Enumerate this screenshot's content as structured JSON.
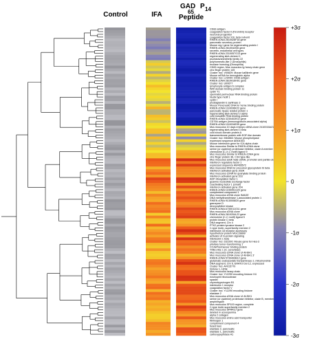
{
  "chart_data": {
    "type": "heatmap",
    "columns": [
      "Control",
      "IFA",
      "GAD 65 P14 Peptide"
    ],
    "column_labels": {
      "control": "Control",
      "ifa": "IFA",
      "gad_main": "GAD",
      "gad_sub": "65",
      "p14_main": "P",
      "p14_sub": "14",
      "peptide": "Peptide"
    },
    "colorbar": {
      "ticks": [
        "+3σ",
        "+2σ",
        "+1σ",
        "0",
        "-1σ",
        "-2σ",
        "-3σ"
      ],
      "values": [
        3,
        2,
        1,
        0,
        -1,
        -2,
        -3
      ],
      "colors_high_to_low": [
        "#c81a10",
        "#f0601c",
        "#f6a028",
        "#f3e32c",
        "#8a87b4",
        "#2b36cc",
        "#0b1aa2"
      ]
    },
    "rows": [
      "CD83 antigen",
      "coagulation factor II (thrombin) receptor",
      "neuronal progenitor",
      "coagulation factor XIII, beta subunit",
      "RIKEN cDNA 2610528F18 gene",
      "pancreatic secretory protein",
      "Mouse reg I gene for regenerating protein I",
      "RIKEN cDNA 2610042I06 gene",
      "secretin, endothelial cell types",
      "RIKEN cDNA 2310057G13 gene",
      "regenerating islet-derived 1",
      "psoriasis/anesthetic family 22",
      "polyhomeotic-like 2 (Drosophila)",
      "enolase homolog (Drosophila)",
      "CD83 region, Mus musculus Ig heavy chain gene",
      "zinc finger protein 145",
      "Cluster Incl. V00829: Mouse kallikrein gene",
      "Mouse mRNA for hemoglobin alpha",
      "Cluster Incl. L29454: CD36 antigen",
      "RIKEN cDNA 2810016H01 gene",
      "Cluster Incl. U00677",
      "lymphocyte antigen 6 complex",
      "WW domain binding protein 11",
      "cyclin T1",
      "spermatid perinuclear RNA binding protein",
      "Nudix type motif 1",
      "cyclin I",
      "prostaglandin E synthase 3",
      "Mouse Pancreatic DNA for heme binding protein",
      "RIKEN cDNA 1110006K22 gene",
      "pancreatic lipase related protein 1",
      "regenerating islet-derived 3 alpha",
      "cold inducible RNA binding protein",
      "RIKEN cDNA 3230402E02 gene",
      "CD79A antigen (immunoglobulin-associated alpha)",
      "RIKEN cDNA 1110004E09 gene",
      "Mus musculus 10 days embryo cDNA clone 2410015A21",
      "regenerating islet-derived 3 beta",
      "cold shock domain protein A",
      "transmembrane protein with EGF-like domain",
      "Cluster Incl. M63863: Mouse phospholipase",
      "expressed sequence AI504353",
      "Mouse interleukin gene for ICA alpha chain",
      "Mus musculus Similar to RIKEN cDNA clone",
      "serine (or cysteine) proteinase inhibitor, clade A member 3N",
      "chemokine (C-X-C motif) ligand 9",
      "Mus musculus Similar to RIKEN cDNA gene",
      "zinc finger protein 36, C3H type-like",
      "Mus musculus adult male cDNA, promoter and partial cds",
      "interferon regulatory factor 1",
      "expressed sequence AW465572",
      "Mus musculus DNA for precursor glycoprotein Ib beta",
      "interferon activated gene 202A",
      "Mus musculus cDNA for guanylate binding protein",
      "interferon activated gene 203",
      "ADP-ribosylation factor 1",
      "guanine nucleotide exchange factor",
      "coactivating factor 1 (small)",
      "interferon activated gene 204",
      "RIKEN cDNA 1100001G20 gene",
      "complement component 1",
      "Mus musculus cDNA clone IMAGE",
      "DNA methyltransferase 1-associated protein 1",
      "RIKEN cDNA 9130008I20 gene",
      "granzyme D",
      "deoxycytidine kinase",
      "RIKEN cDNA A730011O11 gene",
      "Mus musculus cDNA clone",
      "RIKEN cDNA 2610204L22 gene",
      "chemokine (C-C motif) ligand 5",
      "protein kinase C beta",
      "DNA segment, Chr 4",
      "PTK2 protein tyrosine kinase 2",
      "C-type lectin, superfamily member 2",
      "interleukin 18 receptor accessory",
      "hypothetical protein MGC28899",
      "activator of G-protein signaling",
      "interleukin 1 beta",
      "Cluster Incl. D32200: Mouse gene for Hes-3",
      "pituitary tumor-transforming 1",
      "CCAAT/enhancer binding protein",
      "YME1-like 1 (S. cerevisiae)",
      "Mus musculus cDNA clone UI-M-BH1",
      "Mus musculus cDNA clone UI-M-BH1 3'",
      "RIKEN cDNA 5730493B12 gene",
      "glutamate oxaloacetate transaminase 2, mitochondrial",
      "DNA segment, Chr 6, ERATO Doi 12, expressed",
      "Cluster Incl. AF015770",
      "histone 1, H2bk",
      "Mus musculus heavy chain",
      "Cluster Incl. Y12290 encoding histone H4",
      "eosinophil ribonuclease",
      "spastin",
      "chymotrypsinogen B1",
      "interleukin 1 receptor",
      "coagulation factor V",
      "Cluster Incl. Y12290 encoding histone",
      "elastase 2",
      "Mus musculus cDNA clone UI-M-BH1",
      "serine (or cysteine) proteinase inhibitor, clade B, member 2",
      "amphiregulin",
      "Mus musculus SP100 region, complete",
      "C-type lectin superfamily member 2",
      "Mus musculus SPRR2J gene",
      "deleted in azoospermia",
      "alpha 2 collagen",
      "Mus musculus amino acid transporter",
      "fibrinogen 1",
      "complement component 4",
      "fused toes",
      "elastase 2, pancreatic",
      "elastase 1, pancreatic",
      "carboxypeptidase A1"
    ]
  }
}
